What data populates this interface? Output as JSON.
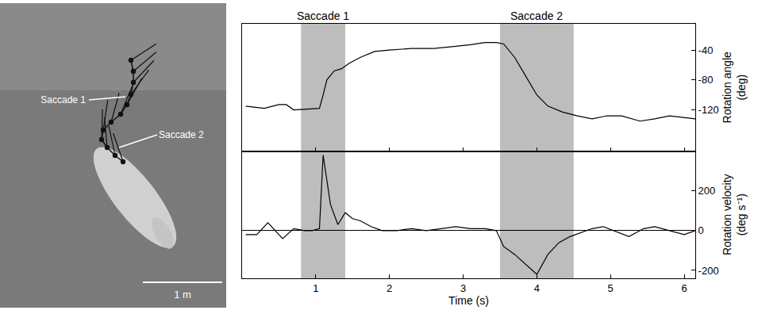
{
  "chart_data": [
    {
      "type": "line",
      "y_label": "Rotation angle (deg)",
      "x": [
        0.05,
        0.3,
        0.5,
        0.6,
        0.7,
        0.9,
        1.05,
        1.1,
        1.15,
        1.25,
        1.35,
        1.45,
        1.6,
        1.8,
        2.0,
        2.3,
        2.6,
        2.9,
        3.1,
        3.3,
        3.45,
        3.55,
        3.7,
        3.85,
        4.0,
        4.15,
        4.35,
        4.55,
        4.75,
        4.95,
        5.15,
        5.4,
        5.6,
        5.8,
        6.0,
        6.15
      ],
      "values": [
        -115,
        -118,
        -113,
        -113,
        -120,
        -119,
        -118,
        -100,
        -80,
        -68,
        -65,
        -58,
        -50,
        -42,
        -40,
        -38,
        -38,
        -35,
        -33,
        -30,
        -30,
        -32,
        -50,
        -75,
        -100,
        -115,
        -123,
        -128,
        -132,
        -128,
        -128,
        -135,
        -132,
        -128,
        -130,
        -132
      ],
      "xlim": [
        0,
        6.15
      ],
      "xticks": [
        1,
        2,
        3,
        4,
        5,
        6
      ],
      "ylim": [
        -175,
        -5
      ],
      "yticks": [
        -120,
        -80,
        -40
      ],
      "tick_labels": "y",
      "color": "#000000",
      "regions": [
        {
          "label": "Saccade 1",
          "x0": 0.8,
          "x1": 1.4,
          "color": "#bdbdbd"
        },
        {
          "label": "Saccade 2",
          "x0": 3.5,
          "x1": 4.5,
          "color": "#bdbdbd"
        }
      ]
    },
    {
      "type": "line",
      "y_label": "Rotation velocity (deg s⁻¹)",
      "x_label": "Time (s)",
      "x": [
        0.05,
        0.2,
        0.35,
        0.45,
        0.55,
        0.7,
        0.85,
        0.95,
        1.05,
        1.1,
        1.2,
        1.3,
        1.4,
        1.5,
        1.6,
        1.75,
        1.9,
        2.1,
        2.3,
        2.5,
        2.7,
        2.9,
        3.1,
        3.3,
        3.45,
        3.55,
        3.7,
        3.85,
        4.0,
        4.15,
        4.3,
        4.45,
        4.6,
        4.75,
        4.9,
        5.1,
        5.25,
        5.45,
        5.6,
        5.8,
        6.0,
        6.15
      ],
      "values": [
        -20,
        -20,
        40,
        0,
        -40,
        10,
        0,
        0,
        10,
        380,
        130,
        30,
        90,
        60,
        50,
        20,
        0,
        0,
        10,
        0,
        10,
        20,
        10,
        10,
        0,
        -80,
        -120,
        -170,
        -220,
        -120,
        -60,
        -30,
        -10,
        10,
        20,
        -10,
        -30,
        10,
        20,
        0,
        -20,
        0
      ],
      "xlim": [
        0,
        6.15
      ],
      "xticks": [
        1,
        2,
        3,
        4,
        5,
        6
      ],
      "ylim": [
        -240,
        400
      ],
      "yticks": [
        -200,
        0,
        200
      ],
      "color": "#000000"
    }
  ],
  "image_panel": {
    "labels": [
      "Saccade 1",
      "Saccade 2"
    ],
    "scale_bar": "1 m"
  }
}
